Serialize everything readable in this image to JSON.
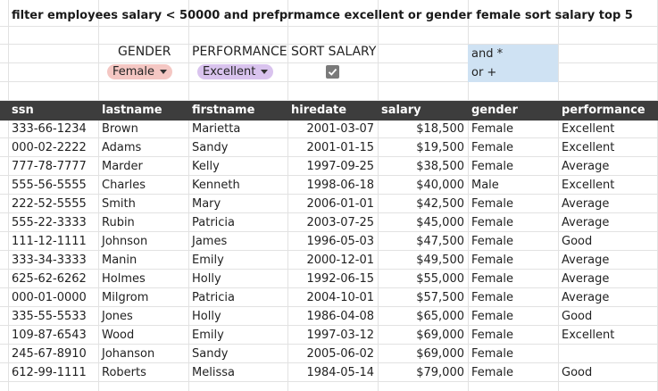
{
  "title": "filter employees salary < 50000 and prefprmamce excellent or gender female sort salary top 5",
  "controls": {
    "gender_label": "GENDER",
    "performance_label": "PERFORMANCE",
    "sort_label": "SORT SALARY",
    "gender_value": "Female",
    "performance_value": "Excellent",
    "sort_checked": true,
    "and_text": "and *",
    "or_text": "or +"
  },
  "colors": {
    "female_chip": "#f4c7c3",
    "excellent_chip": "#d9c3ee",
    "header_bg": "#3d3d3d",
    "blue_cell": "#cfe2f3"
  },
  "table": {
    "headers": [
      "ssn",
      "lastname",
      "firstname",
      "hiredate",
      "salary",
      "gender",
      "performance"
    ],
    "rows": [
      [
        "333-66-1234",
        "Brown",
        "Marietta",
        "2001-03-07",
        "$18,500",
        "Female",
        "Excellent"
      ],
      [
        "000-02-2222",
        "Adams",
        "Sandy",
        "2001-01-15",
        "$19,500",
        "Female",
        "Excellent"
      ],
      [
        "777-78-7777",
        "Marder",
        "Kelly",
        "1997-09-25",
        "$38,500",
        "Female",
        "Average"
      ],
      [
        "555-56-5555",
        "Charles",
        "Kenneth",
        "1998-06-18",
        "$40,000",
        "Male",
        "Excellent"
      ],
      [
        "222-52-5555",
        "Smith",
        "Mary",
        "2006-01-01",
        "$42,500",
        "Female",
        "Average"
      ],
      [
        "555-22-3333",
        "Rubin",
        "Patricia",
        "2003-07-25",
        "$45,000",
        "Female",
        "Average"
      ],
      [
        "111-12-1111",
        "Johnson",
        "James",
        "1996-05-03",
        "$47,500",
        "Female",
        "Good"
      ],
      [
        "333-34-3333",
        "Manin",
        "Emily",
        "2000-12-01",
        "$49,500",
        "Female",
        "Average"
      ],
      [
        "625-62-6262",
        "Holmes",
        "Holly",
        "1992-06-15",
        "$55,000",
        "Female",
        "Average"
      ],
      [
        "000-01-0000",
        "Milgrom",
        "Patricia",
        "2004-10-01",
        "$57,500",
        "Female",
        "Average"
      ],
      [
        "335-55-5533",
        "Jones",
        "Holly",
        "1986-04-08",
        "$65,000",
        "Female",
        "Good"
      ],
      [
        "109-87-6543",
        "Wood",
        "Emily",
        "1997-03-12",
        "$69,000",
        "Female",
        "Excellent"
      ],
      [
        "245-67-8910",
        "Johanson",
        "Sandy",
        "2005-06-02",
        "$69,000",
        "Female",
        ""
      ],
      [
        "612-99-1111",
        "Roberts",
        "Melissa",
        "1984-05-14",
        "$79,000",
        "Female",
        "Good"
      ]
    ]
  }
}
